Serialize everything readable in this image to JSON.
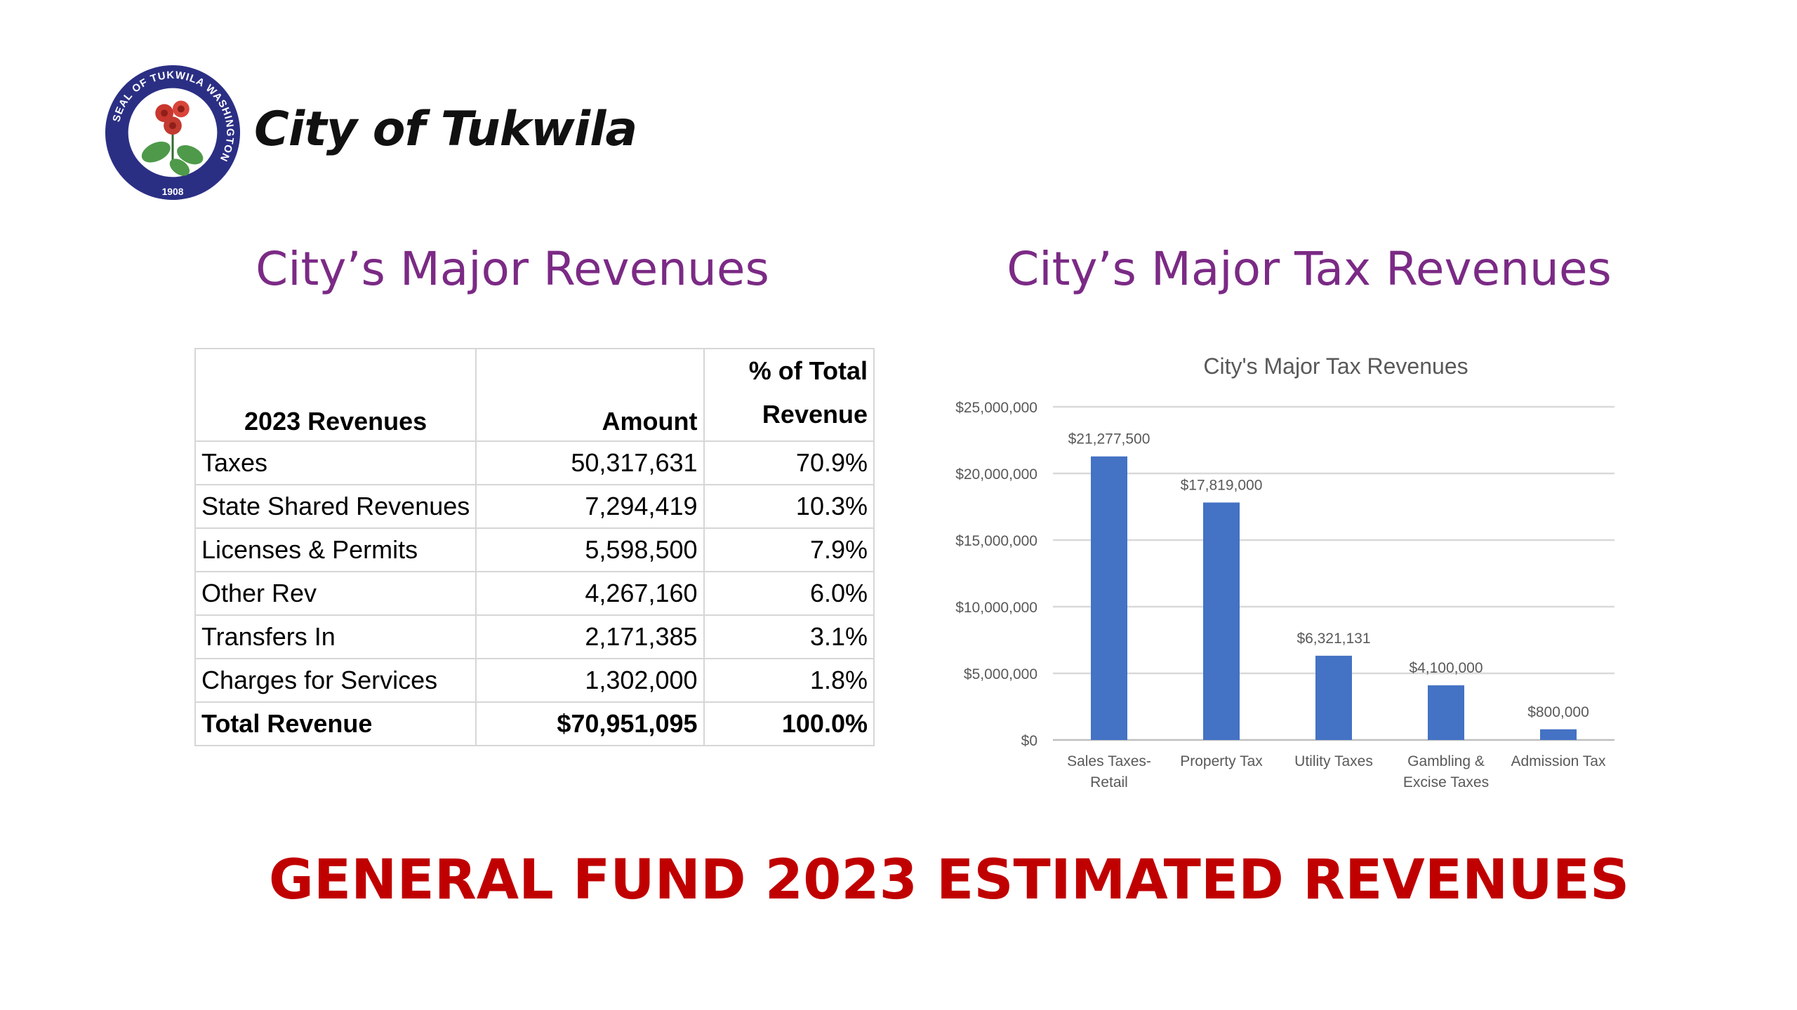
{
  "header": {
    "seal": {
      "ring_text": "SEAL OF TUKWILA WASHINGTON",
      "year": "1908",
      "ring_color": "#2b2f84"
    },
    "city_name": "City of Tukwila"
  },
  "left_section": {
    "title": "City’s Major Revenues",
    "table": {
      "headers": {
        "label": "2023 Revenues",
        "amount": "Amount",
        "pct_line1": "% of Total",
        "pct_line2": "Revenue"
      },
      "rows": [
        {
          "label": "Taxes",
          "amount": "50,317,631",
          "pct": "70.9%"
        },
        {
          "label": "State Shared Revenues",
          "amount": "7,294,419",
          "pct": "10.3%"
        },
        {
          "label": "Licenses & Permits",
          "amount": "5,598,500",
          "pct": "7.9%"
        },
        {
          "label": "Other Rev",
          "amount": "4,267,160",
          "pct": "6.0%"
        },
        {
          "label": "Transfers In",
          "amount": "2,171,385",
          "pct": "3.1%"
        },
        {
          "label": "Charges for Services",
          "amount": "1,302,000",
          "pct": "1.8%"
        }
      ],
      "total": {
        "label": "Total Revenue",
        "amount": "$70,951,095",
        "pct": "100.0%"
      }
    }
  },
  "right_section": {
    "title": "City’s Major Tax Revenues"
  },
  "chart_data": {
    "type": "bar",
    "title": "City's Major Tax Revenues",
    "categories": [
      [
        "Sales Taxes-",
        "Retail"
      ],
      [
        "Property Tax"
      ],
      [
        "Utility Taxes"
      ],
      [
        "Gambling &",
        "Excise Taxes"
      ],
      [
        "Admission Tax"
      ]
    ],
    "values": [
      21277500,
      17819000,
      6321131,
      4100000,
      800000
    ],
    "data_labels": [
      "$21,277,500",
      "$17,819,000",
      "$6,321,131",
      "$4,100,000",
      "$800,000"
    ],
    "y_ticks": [
      0,
      5000000,
      10000000,
      15000000,
      20000000,
      25000000
    ],
    "y_tick_labels": [
      "$0",
      "$5,000,000",
      "$10,000,000",
      "$15,000,000",
      "$20,000,000",
      "$25,000,000"
    ],
    "ylim": [
      0,
      25000000
    ],
    "grid": true,
    "legend": "none",
    "bar_color": "#4472c4"
  },
  "banner": "GENERAL FUND 2023 ESTIMATED REVENUES",
  "colors": {
    "title_purple": "#7b2a85",
    "banner_red": "#c00000"
  }
}
